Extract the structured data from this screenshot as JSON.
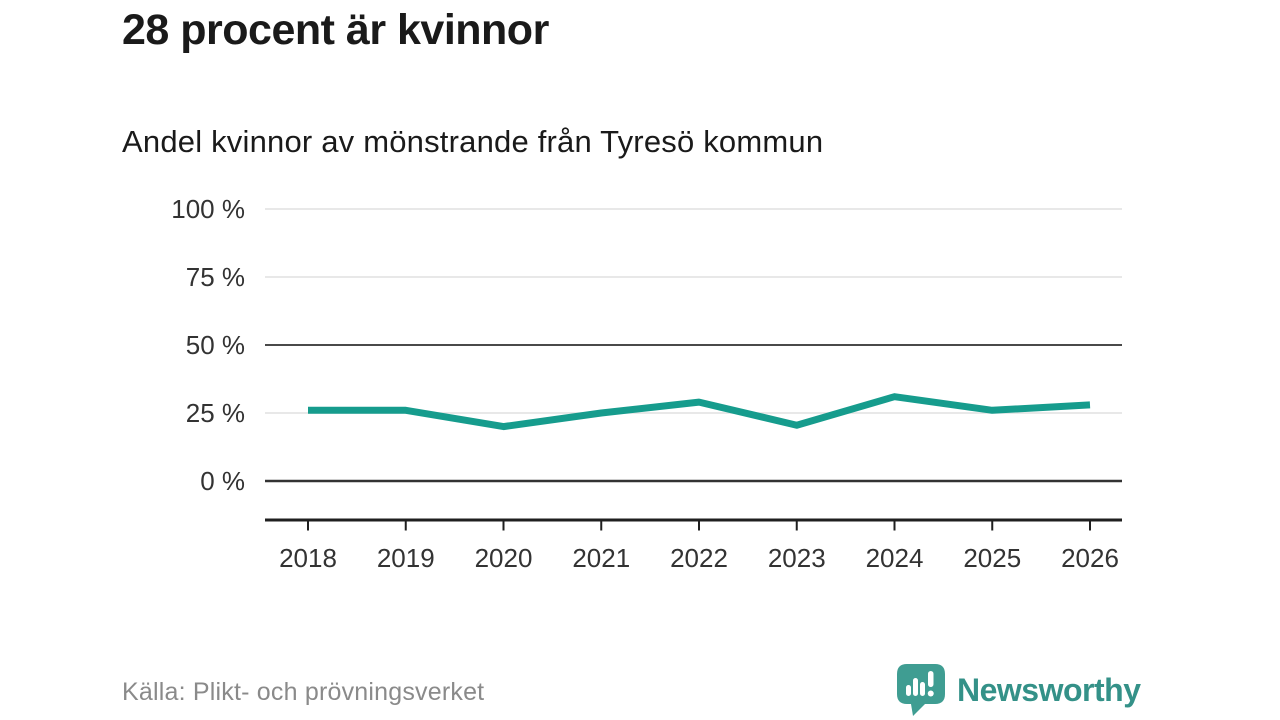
{
  "header": {
    "title": "28 procent är kvinnor",
    "subtitle": "Andel kvinnor av mönstrande från Tyresö kommun"
  },
  "footer": {
    "source": "Källa: Plikt- och prövningsverket",
    "brand_name": "Newsworthy",
    "brand_icon": "newsworthy-bubble-barchart-icon"
  },
  "colors": {
    "line": "#169C8D",
    "grid_light": "#e1e1e1",
    "grid_mid": "#4a4a4a",
    "grid_zero": "#333333",
    "axis": "#1f1f1f",
    "tick_text": "#333333",
    "title_text": "#1a1a1a",
    "source_text": "#8a8a8a",
    "brand_teal": "#3F9D92"
  },
  "chart_data": {
    "type": "line",
    "title": "28 procent är kvinnor",
    "subtitle": "Andel kvinnor av mönstrande från Tyresö kommun",
    "x": [
      2018,
      2019,
      2020,
      2021,
      2022,
      2023,
      2024,
      2025,
      2026
    ],
    "series": [
      {
        "name": "Andel kvinnor av mönstrande",
        "values": [
          26,
          26,
          20,
          25,
          29,
          20.5,
          31,
          26,
          28
        ]
      }
    ],
    "ylim": [
      0,
      100
    ],
    "yticks": [
      0,
      25,
      50,
      75,
      100
    ],
    "ytick_labels": [
      "0 %",
      "25 %",
      "50 %",
      "75 %",
      "100 %"
    ],
    "xtick_labels": [
      "2018",
      "2019",
      "2020",
      "2021",
      "2022",
      "2023",
      "2024",
      "2025",
      "2026"
    ],
    "unit": "%",
    "grid": "horizontal",
    "legend": "none",
    "emphasized_gridlines": [
      0,
      50
    ]
  }
}
